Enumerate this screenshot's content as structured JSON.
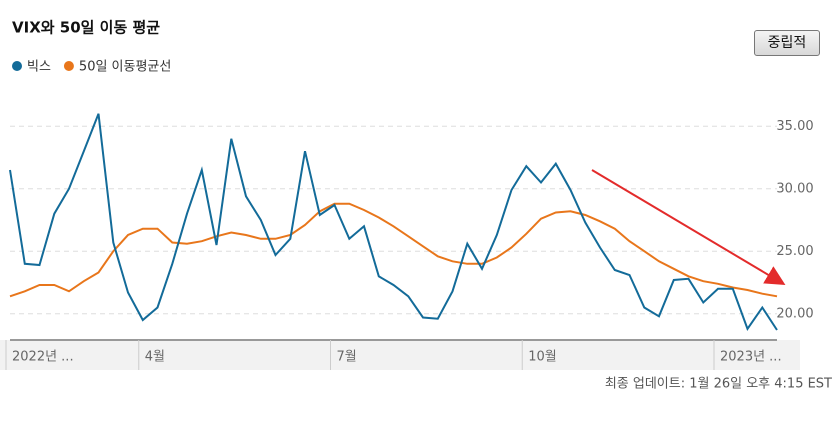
{
  "chart_data": {
    "type": "line",
    "title": "VIX와 50일 이동 평균",
    "button": "중립적",
    "note": "최종 업데이트: 1월 26일 오후 4:15 EST",
    "categories": [
      "2022년 ...",
      null,
      null,
      null,
      null,
      null,
      null,
      null,
      null,
      "4월",
      null,
      null,
      null,
      null,
      null,
      null,
      null,
      null,
      null,
      null,
      null,
      null,
      "7월",
      null,
      null,
      null,
      null,
      null,
      null,
      null,
      null,
      null,
      null,
      null,
      null,
      "10월",
      null,
      null,
      null,
      null,
      null,
      null,
      null,
      null,
      null,
      null,
      null,
      null,
      "2023년 ...",
      null,
      null,
      null,
      null
    ],
    "series": [
      {
        "name": "빅스",
        "color": "#136b99",
        "values": [
          31.5,
          24,
          23.9,
          28,
          30,
          33,
          36,
          25.7,
          21.7,
          19.5,
          20.5,
          24,
          28,
          31.5,
          25.5,
          34,
          29.4,
          27.5,
          24.7,
          26,
          33,
          27.9,
          28.7,
          26,
          27,
          23,
          22.3,
          21.4,
          19.7,
          19.6,
          21.8,
          25.6,
          23.6,
          26.3,
          29.9,
          31.8,
          30.5,
          32,
          29.9,
          27.3,
          25.3,
          23.5,
          23.1,
          20.5,
          19.8,
          22.7,
          22.8,
          20.9,
          22,
          22,
          18.8,
          20.5,
          18.7
        ]
      },
      {
        "name": "50일 이동평균선",
        "color": "#e8761b",
        "values": [
          21.4,
          21.8,
          22.3,
          22.3,
          21.8,
          22.6,
          23.3,
          25,
          26.3,
          26.8,
          26.8,
          25.7,
          25.6,
          25.8,
          26.2,
          26.5,
          26.3,
          26,
          26,
          26.3,
          27.1,
          28.2,
          28.8,
          28.8,
          28.3,
          27.7,
          27,
          26.2,
          25.4,
          24.6,
          24.2,
          24,
          24,
          24.5,
          25.3,
          26.4,
          27.6,
          28.1,
          28.2,
          27.9,
          27.4,
          26.8,
          25.8,
          25,
          24.2,
          23.6,
          23,
          22.6,
          22.4,
          22.1,
          21.9,
          21.6,
          21.4
        ]
      }
    ],
    "ylim": [
      17.9,
      37.9
    ],
    "yticks": [
      {
        "value": 20,
        "label": "20.00"
      },
      {
        "value": 25,
        "label": "25.00"
      },
      {
        "value": 30,
        "label": "30.00"
      },
      {
        "value": 35,
        "label": "35.00"
      }
    ],
    "grid": true
  }
}
